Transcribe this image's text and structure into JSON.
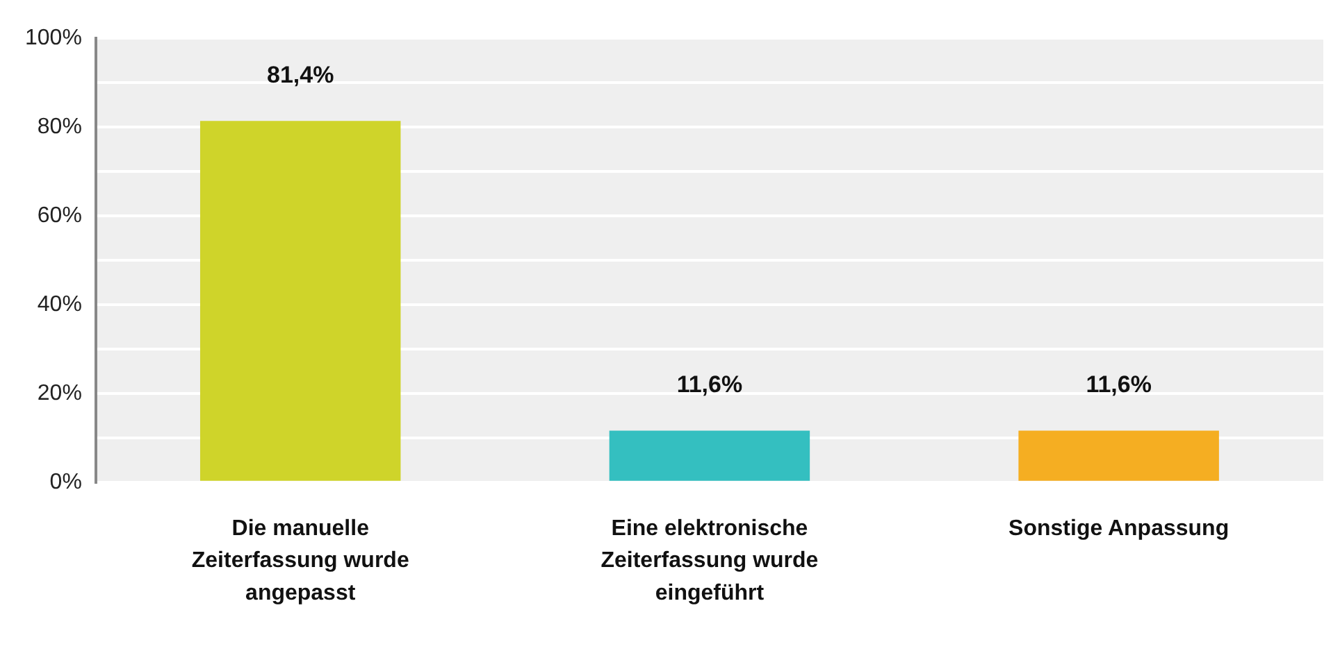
{
  "chart_data": {
    "type": "bar",
    "categories": [
      "Die manuelle Zeiterfassung wurde angepasst",
      "Eine elektronische Zeiterfassung wurde eingeführt",
      "Sonstige Anpassung"
    ],
    "values": [
      81.4,
      11.6,
      11.6
    ],
    "colors": [
      "#cfd42a",
      "#34bfc0",
      "#f5ae22"
    ],
    "value_labels": [
      "81,4%",
      "11,6%",
      "11,6%"
    ],
    "ylim": [
      0,
      100
    ],
    "yticks": [
      {
        "value": 0,
        "label": "0%"
      },
      {
        "value": 10,
        "label": null
      },
      {
        "value": 20,
        "label": "20%"
      },
      {
        "value": 30,
        "label": null
      },
      {
        "value": 40,
        "label": "40%"
      },
      {
        "value": 50,
        "label": null
      },
      {
        "value": 60,
        "label": "60%"
      },
      {
        "value": 70,
        "label": null
      },
      {
        "value": 80,
        "label": "80%"
      },
      {
        "value": 90,
        "label": null
      },
      {
        "value": 100,
        "label": "100%"
      }
    ],
    "grid": "y",
    "legend": false
  }
}
